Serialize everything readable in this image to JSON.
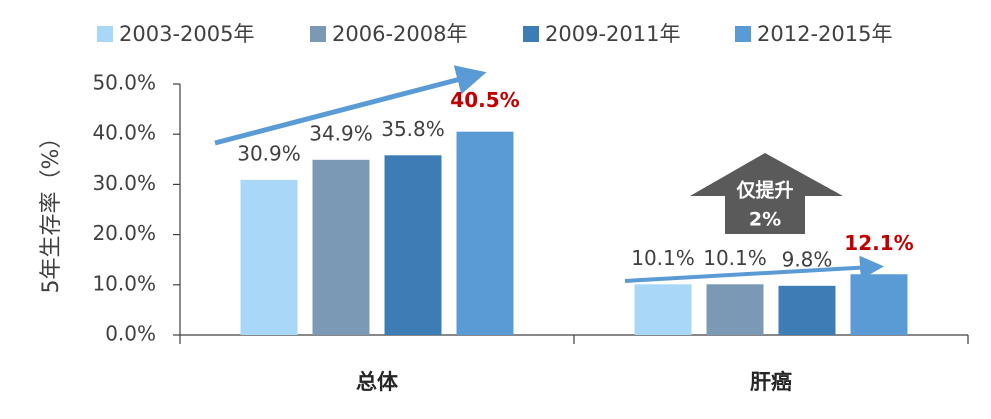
{
  "chart_data": {
    "type": "bar",
    "y_axis_label": "5年生存率（%）",
    "categories": [
      "总体",
      "肝癌"
    ],
    "series": [
      {
        "name": "2003-2005年",
        "color": "#a9d7f7",
        "values": [
          30.9,
          10.1
        ],
        "value_labels": [
          "30.9%",
          "10.1%"
        ]
      },
      {
        "name": "2006-2008年",
        "color": "#7b99b4",
        "values": [
          34.9,
          10.1
        ],
        "value_labels": [
          "34.9%",
          "10.1%"
        ]
      },
      {
        "name": "2009-2011年",
        "color": "#3d7cb4",
        "values": [
          35.8,
          9.8
        ],
        "value_labels": [
          "35.8%",
          "9.8%"
        ]
      },
      {
        "name": "2012-2015年",
        "color": "#5b9bd5",
        "values": [
          40.5,
          12.1
        ],
        "value_labels": [
          "40.5%",
          "12.1%"
        ],
        "label_color": "#c00000"
      }
    ],
    "annotations": [
      "仅提升",
      "2%"
    ],
    "ylim": [
      0,
      50
    ],
    "yticks": [
      {
        "value": 0,
        "label": "0.0%"
      },
      {
        "value": 10,
        "label": "10.0%"
      },
      {
        "value": 20,
        "label": "20.0%"
      },
      {
        "value": 30,
        "label": "30.0%"
      },
      {
        "value": 40,
        "label": "40.0%"
      },
      {
        "value": 50,
        "label": "50.0%"
      }
    ]
  }
}
